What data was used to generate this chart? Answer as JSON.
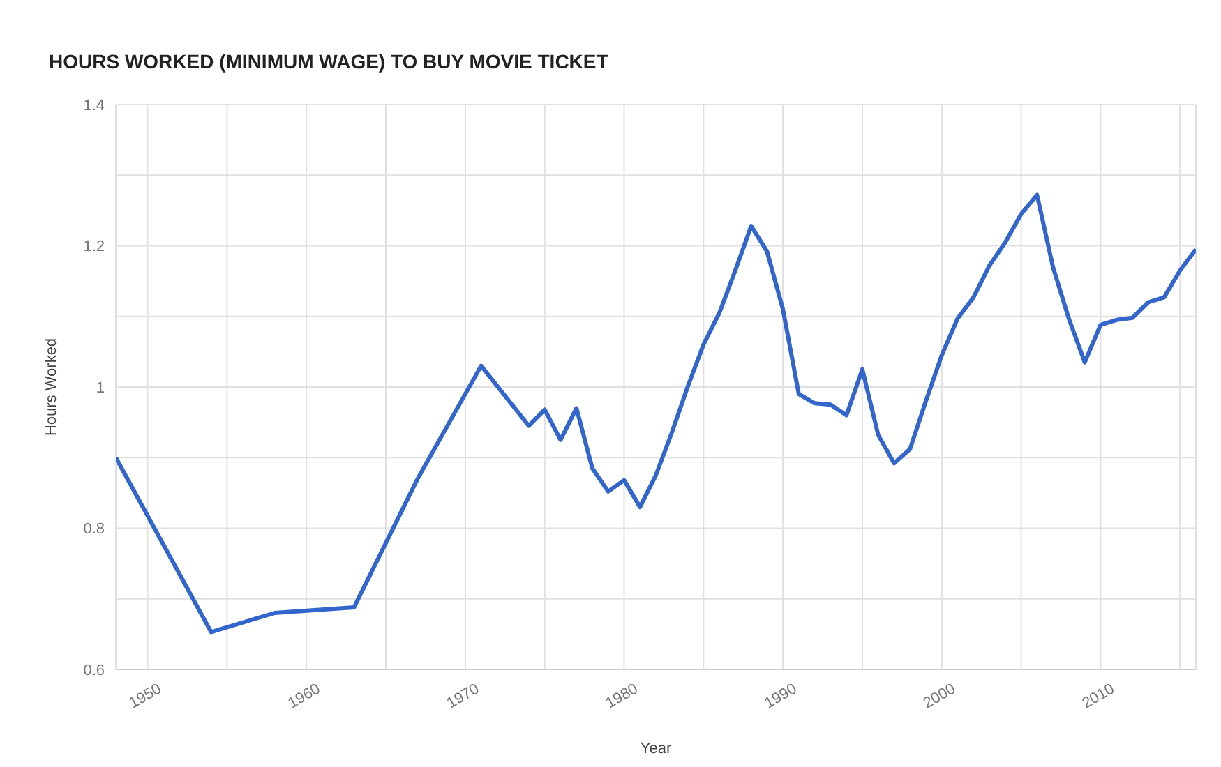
{
  "chart_data": {
    "type": "line",
    "title": "HOURS WORKED (MINIMUM WAGE) TO BUY MOVIE TICKET",
    "xlabel": "Year",
    "ylabel": "Hours Worked",
    "x": [
      1948,
      1954,
      1958,
      1963,
      1967,
      1971,
      1974,
      1975,
      1976,
      1977,
      1978,
      1979,
      1980,
      1981,
      1982,
      1983,
      1984,
      1985,
      1986,
      1987,
      1988,
      1989,
      1990,
      1991,
      1992,
      1993,
      1994,
      1995,
      1996,
      1997,
      1998,
      1999,
      2000,
      2001,
      2002,
      2003,
      2004,
      2005,
      2006,
      2007,
      2008,
      2009,
      2010,
      2011,
      2012,
      2013,
      2014,
      2015,
      2016
    ],
    "series": [
      {
        "color": "#3366cc",
        "values": [
          0.9,
          0.653,
          0.68,
          0.688,
          0.87,
          1.03,
          0.945,
          0.968,
          0.925,
          0.97,
          0.885,
          0.852,
          0.868,
          0.83,
          0.875,
          0.935,
          1.0,
          1.06,
          1.105,
          1.165,
          1.228,
          1.192,
          1.11,
          0.99,
          0.977,
          0.975,
          0.96,
          1.025,
          0.932,
          0.892,
          0.912,
          0.98,
          1.045,
          1.097,
          1.127,
          1.172,
          1.205,
          1.245,
          1.272,
          1.17,
          1.097,
          1.035,
          1.088,
          1.095,
          1.098,
          1.12,
          1.127,
          1.165,
          1.195
        ]
      }
    ],
    "xlim": [
      1948,
      2016
    ],
    "xticks": [
      1950,
      {
        "value": 1955,
        "label": null
      },
      1960,
      {
        "value": 1965,
        "label": null
      },
      1970,
      {
        "value": 1975,
        "label": null
      },
      1980,
      {
        "value": 1985,
        "label": null
      },
      1990,
      {
        "value": 1995,
        "label": null
      },
      2000,
      {
        "value": 2005,
        "label": null
      },
      2010,
      {
        "value": 2015,
        "label": null
      }
    ],
    "ylim": [
      0.6,
      1.4
    ],
    "yticks": [
      0.6,
      {
        "value": 0.7,
        "label": null
      },
      0.8,
      {
        "value": 0.9,
        "label": null
      },
      1,
      {
        "value": 1.1,
        "label": null
      },
      1.2,
      {
        "value": 1.3,
        "label": null
      },
      1.4
    ],
    "grid": true,
    "legend": false,
    "marker": "none",
    "line_style": "solid"
  }
}
